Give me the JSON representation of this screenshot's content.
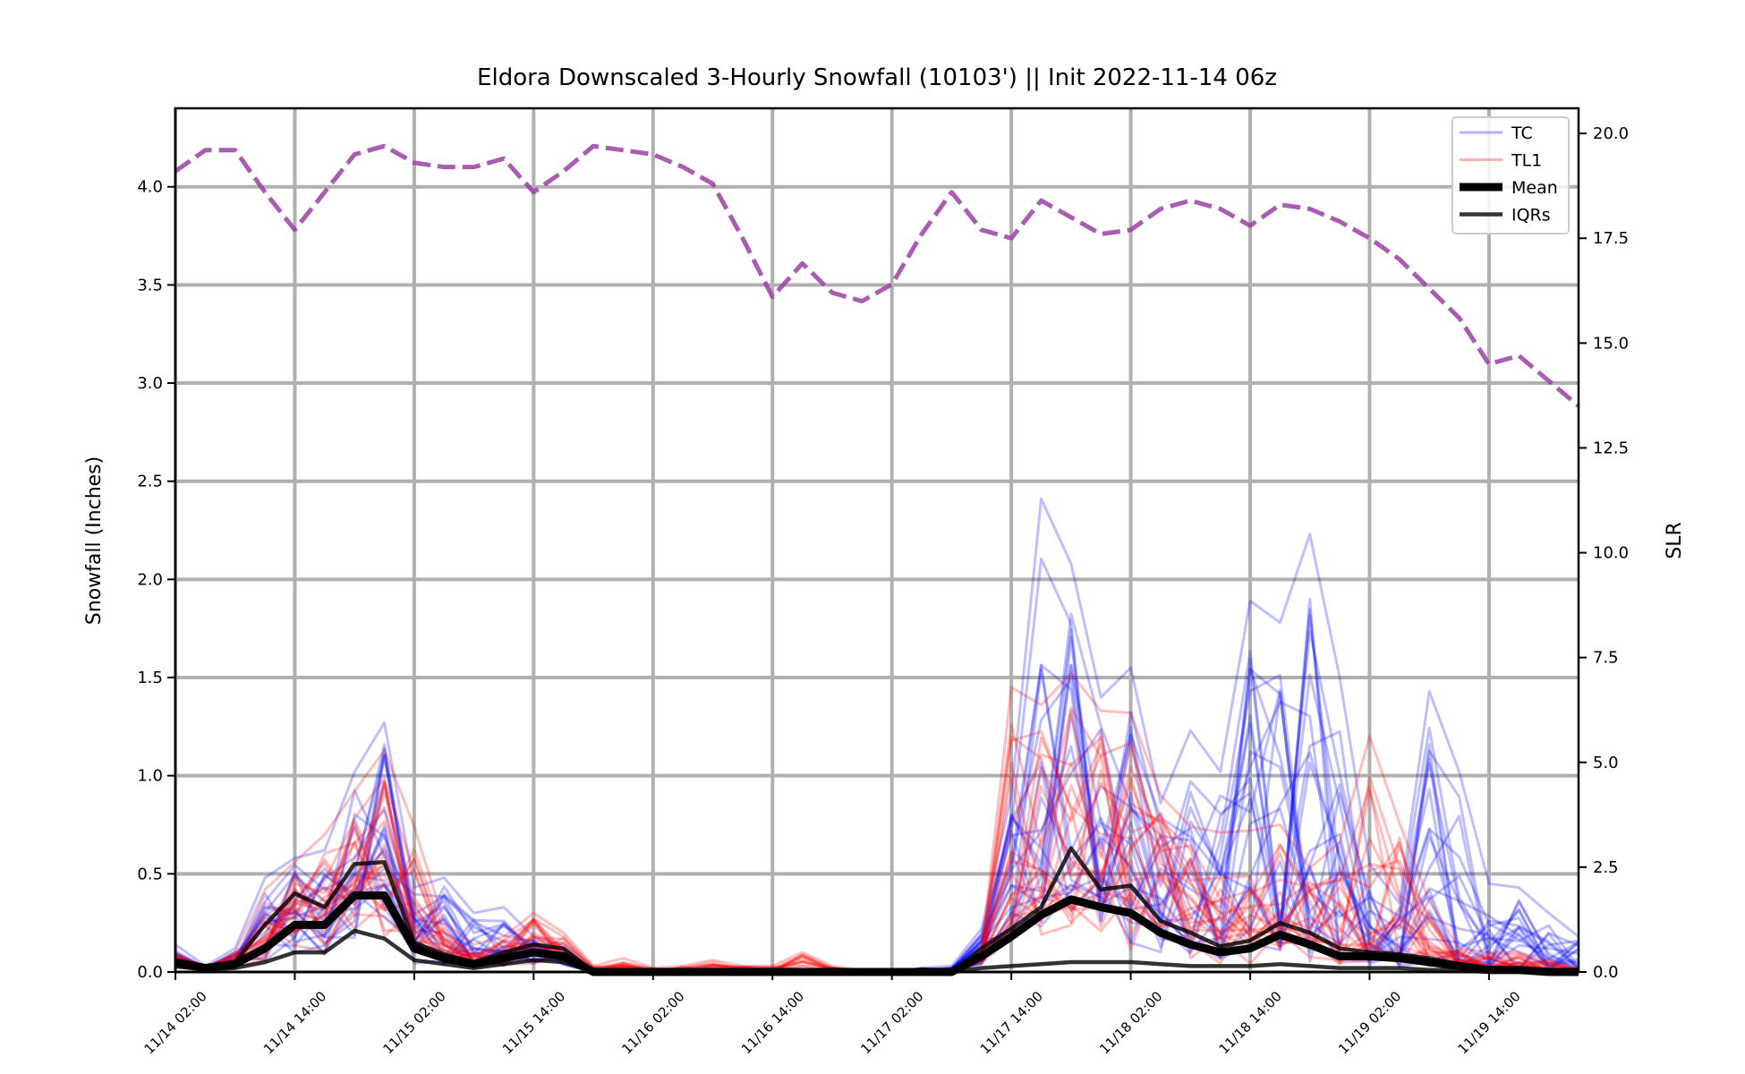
{
  "chart_data": {
    "type": "line",
    "title": "Eldora Downscaled 3-Hourly Snowfall (10103') || Init 2022-11-14 06z",
    "ylabel": "Snowfall (Inches)",
    "y2label": "SLR",
    "ylim": [
      0,
      4.4
    ],
    "y2lim": [
      0,
      20.6
    ],
    "yticks": [
      "0.0",
      "0.5",
      "1.0",
      "1.5",
      "2.0",
      "2.5",
      "3.0",
      "3.5",
      "4.0"
    ],
    "y2ticks": [
      "0.0",
      "2.5",
      "5.0",
      "7.5",
      "10.0",
      "12.5",
      "15.0",
      "17.5",
      "20.0"
    ],
    "x_unit": "hours from 11/14 02:00",
    "xlim": [
      0,
      141
    ],
    "xticks": [
      "11/14 02:00",
      "11/14 14:00",
      "11/15 02:00",
      "11/15 14:00",
      "11/16 02:00",
      "11/16 14:00",
      "11/17 02:00",
      "11/17 14:00",
      "11/18 02:00",
      "11/18 14:00",
      "11/19 02:00",
      "11/19 14:00"
    ],
    "grid": true,
    "legend_position": "top-right",
    "legend": [
      "TC",
      "TL1",
      "Mean",
      "IQRs"
    ],
    "colors": {
      "tc": "#0000ff",
      "tl1": "#ff0000",
      "mean": "#000000",
      "iqr": "#000000",
      "slr": "#9b3fa6",
      "grid": "#b0b0b0"
    },
    "x": [
      0,
      3,
      6,
      9,
      12,
      15,
      18,
      21,
      24,
      27,
      30,
      33,
      36,
      39,
      42,
      45,
      48,
      51,
      54,
      57,
      60,
      63,
      66,
      69,
      72,
      75,
      78,
      81,
      84,
      87,
      90,
      93,
      96,
      99,
      102,
      105,
      108,
      111,
      114,
      117,
      120,
      123,
      126,
      129,
      132,
      135,
      138,
      141
    ],
    "mean": [
      0.05,
      0.02,
      0.04,
      0.12,
      0.24,
      0.24,
      0.39,
      0.39,
      0.12,
      0.07,
      0.04,
      0.07,
      0.1,
      0.08,
      0.0,
      0.0,
      0.0,
      0.0,
      0.0,
      0.0,
      0.0,
      0.0,
      0.0,
      0.0,
      0.0,
      0.0,
      0.0,
      0.08,
      0.18,
      0.29,
      0.37,
      0.33,
      0.3,
      0.2,
      0.14,
      0.1,
      0.12,
      0.19,
      0.14,
      0.08,
      0.08,
      0.07,
      0.05,
      0.03,
      0.01,
      0.01,
      0.0,
      0.0
    ],
    "iqr_upper": [
      0.06,
      0.02,
      0.05,
      0.24,
      0.4,
      0.33,
      0.55,
      0.56,
      0.15,
      0.09,
      0.05,
      0.1,
      0.14,
      0.12,
      0.0,
      0.0,
      0.0,
      0.0,
      0.0,
      0.0,
      0.0,
      0.0,
      0.0,
      0.0,
      0.0,
      0.0,
      0.0,
      0.12,
      0.22,
      0.33,
      0.63,
      0.42,
      0.44,
      0.26,
      0.2,
      0.13,
      0.16,
      0.25,
      0.2,
      0.12,
      0.1,
      0.09,
      0.07,
      0.04,
      0.02,
      0.01,
      0.0,
      0.0
    ],
    "iqr_lower": [
      0.03,
      0.01,
      0.02,
      0.05,
      0.1,
      0.1,
      0.21,
      0.17,
      0.06,
      0.04,
      0.02,
      0.04,
      0.06,
      0.05,
      0.0,
      0.0,
      0.0,
      0.0,
      0.0,
      0.0,
      0.0,
      0.0,
      0.0,
      0.0,
      0.0,
      0.0,
      0.0,
      0.02,
      0.03,
      0.04,
      0.05,
      0.05,
      0.05,
      0.04,
      0.03,
      0.03,
      0.03,
      0.04,
      0.03,
      0.02,
      0.02,
      0.02,
      0.01,
      0.01,
      0.0,
      0.0,
      0.0,
      0.0
    ],
    "tc_peak": [
      0.14,
      0.03,
      0.12,
      0.48,
      0.58,
      0.62,
      1.02,
      1.27,
      0.43,
      0.48,
      0.3,
      0.33,
      0.18,
      0.14,
      0.02,
      0.01,
      0.01,
      0.01,
      0.01,
      0.01,
      0.0,
      0.0,
      0.0,
      0.0,
      0.0,
      0.02,
      0.03,
      0.22,
      0.9,
      2.41,
      2.08,
      1.4,
      1.55,
      0.86,
      1.23,
      1.02,
      1.89,
      1.78,
      2.23,
      1.5,
      0.55,
      0.35,
      1.43,
      1.02,
      0.45,
      0.43,
      0.3,
      0.18
    ],
    "tl1_peak": [
      0.1,
      0.02,
      0.1,
      0.42,
      0.56,
      0.7,
      0.92,
      1.13,
      0.74,
      0.25,
      0.14,
      0.18,
      0.3,
      0.2,
      0.03,
      0.07,
      0.02,
      0.03,
      0.06,
      0.03,
      0.03,
      0.1,
      0.03,
      0.01,
      0.01,
      0.01,
      0.01,
      0.1,
      1.45,
      1.36,
      1.52,
      1.33,
      1.32,
      0.9,
      0.74,
      0.71,
      0.72,
      0.75,
      0.53,
      0.66,
      1.2,
      0.76,
      0.36,
      0.12,
      0.1,
      0.1,
      0.06,
      0.02
    ],
    "slr": [
      19.1,
      19.6,
      19.6,
      18.6,
      17.7,
      18.6,
      19.5,
      19.7,
      19.3,
      19.2,
      19.2,
      19.4,
      18.6,
      19.1,
      19.7,
      19.6,
      19.5,
      19.2,
      18.8,
      17.5,
      16.1,
      16.9,
      16.2,
      16.0,
      16.4,
      17.6,
      18.6,
      17.7,
      17.5,
      18.4,
      18.0,
      17.6,
      17.7,
      18.2,
      18.4,
      18.2,
      17.8,
      18.3,
      18.2,
      17.9,
      17.5,
      17.0,
      16.3,
      15.6,
      14.5,
      14.7,
      14.1,
      13.5
    ]
  }
}
